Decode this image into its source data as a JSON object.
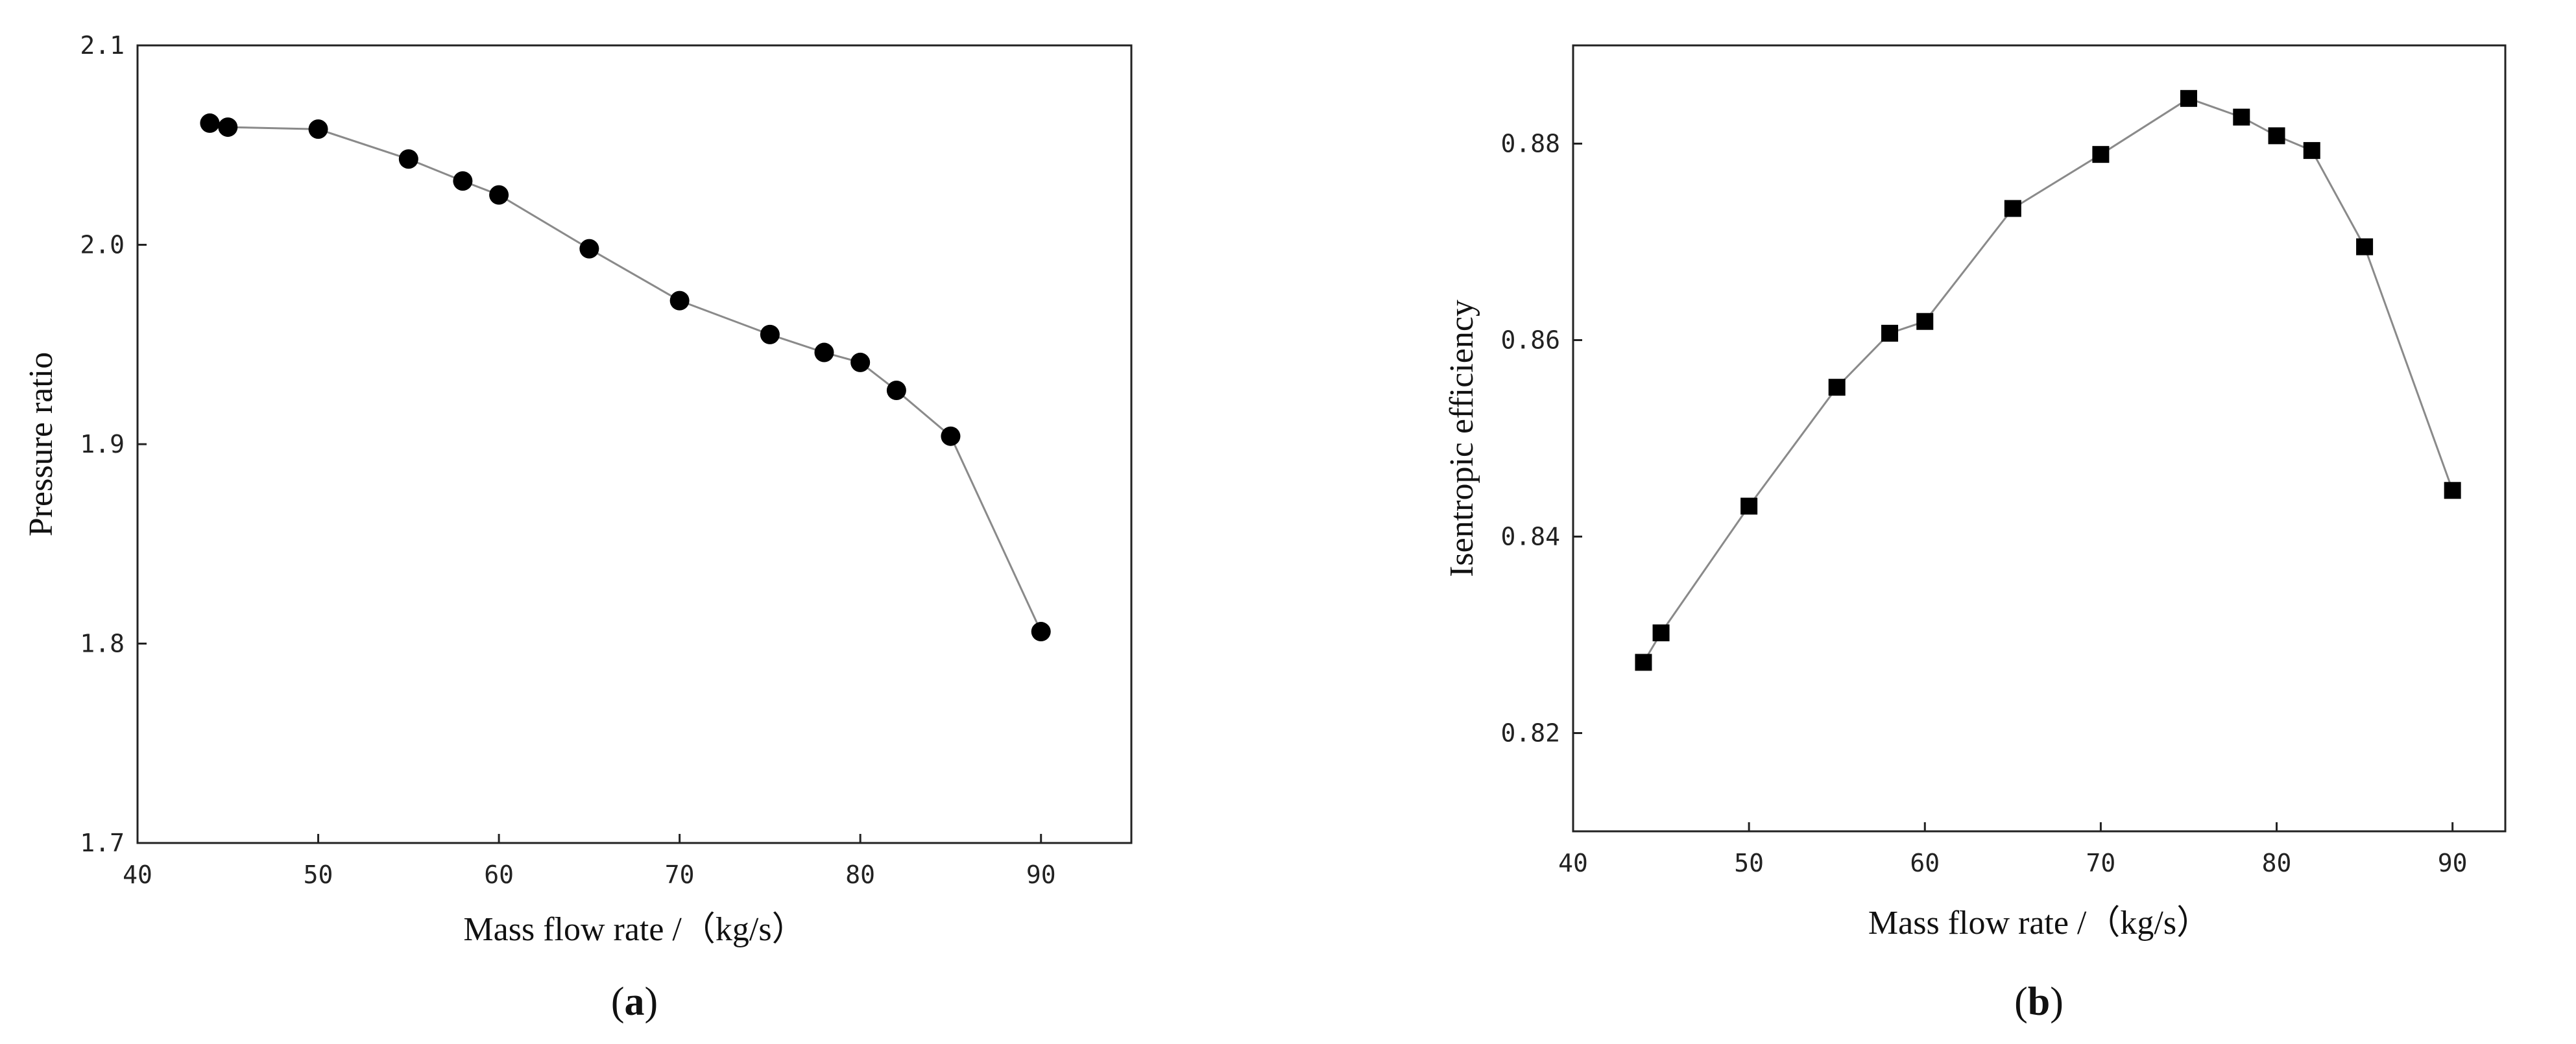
{
  "chart_data": [
    {
      "type": "line",
      "panel_label": "a",
      "xlabel": "Mass flow rate /（kg/s）",
      "ylabel": "Pressure ratio",
      "xlim": [
        40,
        95
      ],
      "ylim": [
        1.7,
        2.1
      ],
      "xticks": [
        "40",
        "50",
        "60",
        "70",
        "80",
        "90"
      ],
      "yticks": [
        "1.7",
        "1.8",
        "1.9",
        "2.0",
        "2.1"
      ],
      "marker": "circle",
      "grid": false,
      "series": [
        {
          "x": [
            44,
            45,
            50,
            55,
            58,
            60,
            65,
            70,
            75,
            78,
            80,
            82,
            85,
            90
          ],
          "y": [
            2.061,
            2.059,
            2.058,
            2.043,
            2.032,
            2.025,
            1.998,
            1.972,
            1.955,
            1.946,
            1.941,
            1.927,
            1.904,
            1.806
          ]
        }
      ]
    },
    {
      "type": "line",
      "panel_label": "b",
      "xlabel": "Mass flow rate /（kg/s）",
      "ylabel": "Isentropic efficiency",
      "xlim": [
        40,
        93
      ],
      "ylim": [
        0.81,
        0.89
      ],
      "xticks": [
        "40",
        "50",
        "60",
        "70",
        "80",
        "90"
      ],
      "yticks": [
        "0.82",
        "0.84",
        "0.86",
        "0.88"
      ],
      "marker": "square",
      "grid": false,
      "series": [
        {
          "x": [
            44,
            45,
            50,
            55,
            58,
            60,
            65,
            70,
            75,
            78,
            80,
            82,
            85,
            90
          ],
          "y": [
            0.8272,
            0.8302,
            0.8431,
            0.8552,
            0.8607,
            0.8619,
            0.8734,
            0.8789,
            0.8846,
            0.8827,
            0.8808,
            0.8793,
            0.8695,
            0.8447
          ]
        }
      ]
    }
  ],
  "line_color": "#8a8a8a",
  "marker_color": "#000000"
}
